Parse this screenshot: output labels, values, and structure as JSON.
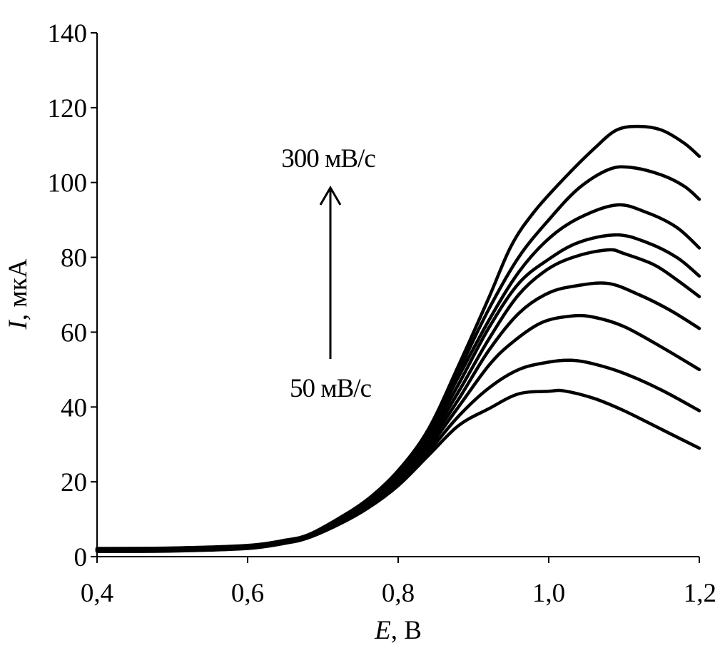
{
  "chart_data": {
    "type": "line",
    "xlabel_var": "E",
    "xlabel_unit": ", В",
    "ylabel_var": "I",
    "ylabel_unit": ", мкА",
    "xlim": [
      0.4,
      1.2
    ],
    "ylim": [
      0,
      140
    ],
    "xticks": [
      0.4,
      0.6,
      0.8,
      1.0,
      1.2
    ],
    "xtick_labels": [
      "0,4",
      "0,6",
      "0,8",
      "1,0",
      "1,2"
    ],
    "yticks": [
      0,
      20,
      40,
      60,
      80,
      100,
      120,
      140
    ],
    "ytick_labels": [
      "0",
      "20",
      "40",
      "60",
      "80",
      "100",
      "120",
      "140"
    ],
    "grid": false,
    "legend": "none",
    "line_color": "#000000",
    "annotations": {
      "top_label": "300 мВ/с",
      "bottom_label": "50 мВ/с",
      "arrow_direction": "up"
    },
    "series": [
      {
        "points": [
          [
            0.4,
            1.4
          ],
          [
            0.5,
            1.5
          ],
          [
            0.6,
            2.2
          ],
          [
            0.65,
            3.6
          ],
          [
            0.68,
            5.0
          ],
          [
            0.72,
            8.5
          ],
          [
            0.76,
            13.0
          ],
          [
            0.8,
            19.0
          ],
          [
            0.84,
            27.0
          ],
          [
            0.88,
            35.0
          ],
          [
            0.92,
            39.5
          ],
          [
            0.96,
            43.5
          ],
          [
            1.0,
            44.2
          ],
          [
            1.02,
            44.3
          ],
          [
            1.06,
            42.3
          ],
          [
            1.1,
            39.0
          ],
          [
            1.15,
            34.0
          ],
          [
            1.2,
            29.0
          ]
        ]
      },
      {
        "points": [
          [
            0.4,
            1.5
          ],
          [
            0.5,
            1.6
          ],
          [
            0.6,
            2.3
          ],
          [
            0.65,
            3.7
          ],
          [
            0.68,
            5.1
          ],
          [
            0.72,
            8.7
          ],
          [
            0.76,
            13.3
          ],
          [
            0.8,
            19.5
          ],
          [
            0.84,
            28.0
          ],
          [
            0.88,
            37.5
          ],
          [
            0.92,
            45.0
          ],
          [
            0.96,
            50.0
          ],
          [
            1.0,
            52.0
          ],
          [
            1.03,
            52.5
          ],
          [
            1.06,
            51.5
          ],
          [
            1.1,
            49.0
          ],
          [
            1.15,
            44.5
          ],
          [
            1.2,
            39.0
          ]
        ]
      },
      {
        "points": [
          [
            0.4,
            1.6
          ],
          [
            0.5,
            1.7
          ],
          [
            0.6,
            2.4
          ],
          [
            0.65,
            3.8
          ],
          [
            0.68,
            5.2
          ],
          [
            0.72,
            8.9
          ],
          [
            0.76,
            13.6
          ],
          [
            0.8,
            20.0
          ],
          [
            0.84,
            29.0
          ],
          [
            0.88,
            40.0
          ],
          [
            0.92,
            51.0
          ],
          [
            0.95,
            57.0
          ],
          [
            0.99,
            62.5
          ],
          [
            1.03,
            64.3
          ],
          [
            1.06,
            64.0
          ],
          [
            1.1,
            61.5
          ],
          [
            1.15,
            56.0
          ],
          [
            1.2,
            50.0
          ]
        ]
      },
      {
        "points": [
          [
            0.4,
            1.7
          ],
          [
            0.5,
            1.8
          ],
          [
            0.6,
            2.5
          ],
          [
            0.65,
            3.9
          ],
          [
            0.68,
            5.3
          ],
          [
            0.72,
            9.1
          ],
          [
            0.76,
            13.9
          ],
          [
            0.8,
            20.5
          ],
          [
            0.84,
            30.0
          ],
          [
            0.88,
            42.0
          ],
          [
            0.92,
            55.0
          ],
          [
            0.96,
            65.0
          ],
          [
            1.0,
            70.5
          ],
          [
            1.04,
            72.5
          ],
          [
            1.08,
            73.0
          ],
          [
            1.12,
            70.0
          ],
          [
            1.16,
            66.0
          ],
          [
            1.2,
            61.0
          ]
        ]
      },
      {
        "points": [
          [
            0.4,
            1.8
          ],
          [
            0.5,
            1.9
          ],
          [
            0.6,
            2.6
          ],
          [
            0.65,
            4.0
          ],
          [
            0.68,
            5.4
          ],
          [
            0.72,
            9.3
          ],
          [
            0.76,
            14.2
          ],
          [
            0.8,
            21.0
          ],
          [
            0.84,
            31.0
          ],
          [
            0.88,
            44.0
          ],
          [
            0.92,
            58.0
          ],
          [
            0.96,
            70.0
          ],
          [
            1.0,
            77.0
          ],
          [
            1.04,
            80.5
          ],
          [
            1.08,
            82.0
          ],
          [
            1.1,
            81.0
          ],
          [
            1.14,
            78.0
          ],
          [
            1.17,
            74.0
          ],
          [
            1.2,
            69.5
          ]
        ]
      },
      {
        "points": [
          [
            0.4,
            1.9
          ],
          [
            0.5,
            2.0
          ],
          [
            0.6,
            2.7
          ],
          [
            0.65,
            4.1
          ],
          [
            0.68,
            5.5
          ],
          [
            0.72,
            9.5
          ],
          [
            0.76,
            14.5
          ],
          [
            0.8,
            21.5
          ],
          [
            0.84,
            32.0
          ],
          [
            0.88,
            46.0
          ],
          [
            0.92,
            61.0
          ],
          [
            0.96,
            73.0
          ],
          [
            1.0,
            79.5
          ],
          [
            1.04,
            84.0
          ],
          [
            1.09,
            86.0
          ],
          [
            1.13,
            84.0
          ],
          [
            1.17,
            80.0
          ],
          [
            1.2,
            75.0
          ]
        ]
      },
      {
        "points": [
          [
            0.4,
            2.0
          ],
          [
            0.5,
            2.1
          ],
          [
            0.6,
            2.8
          ],
          [
            0.65,
            4.2
          ],
          [
            0.68,
            5.6
          ],
          [
            0.72,
            9.7
          ],
          [
            0.76,
            14.8
          ],
          [
            0.8,
            22.0
          ],
          [
            0.84,
            33.0
          ],
          [
            0.88,
            48.0
          ],
          [
            0.92,
            63.0
          ],
          [
            0.96,
            76.0
          ],
          [
            1.0,
            85.0
          ],
          [
            1.04,
            90.5
          ],
          [
            1.09,
            94.0
          ],
          [
            1.13,
            92.0
          ],
          [
            1.17,
            88.0
          ],
          [
            1.2,
            82.5
          ]
        ]
      },
      {
        "points": [
          [
            0.4,
            2.1
          ],
          [
            0.5,
            2.2
          ],
          [
            0.6,
            2.9
          ],
          [
            0.65,
            4.3
          ],
          [
            0.68,
            5.7
          ],
          [
            0.72,
            9.9
          ],
          [
            0.76,
            15.1
          ],
          [
            0.8,
            22.5
          ],
          [
            0.84,
            33.5
          ],
          [
            0.88,
            49.5
          ],
          [
            0.92,
            66.0
          ],
          [
            0.96,
            80.0
          ],
          [
            1.0,
            90.0
          ],
          [
            1.04,
            98.5
          ],
          [
            1.08,
            103.5
          ],
          [
            1.11,
            104.0
          ],
          [
            1.15,
            102.0
          ],
          [
            1.18,
            99.0
          ],
          [
            1.2,
            95.5
          ]
        ]
      },
      {
        "points": [
          [
            0.4,
            2.2
          ],
          [
            0.5,
            2.3
          ],
          [
            0.6,
            3.0
          ],
          [
            0.65,
            4.4
          ],
          [
            0.68,
            5.8
          ],
          [
            0.72,
            10.1
          ],
          [
            0.76,
            15.4
          ],
          [
            0.8,
            23.0
          ],
          [
            0.84,
            34.0
          ],
          [
            0.88,
            51.0
          ],
          [
            0.92,
            69.0
          ],
          [
            0.95,
            83.0
          ],
          [
            0.98,
            92.0
          ],
          [
            1.02,
            101.0
          ],
          [
            1.06,
            109.0
          ],
          [
            1.09,
            114.0
          ],
          [
            1.12,
            115.0
          ],
          [
            1.15,
            114.0
          ],
          [
            1.18,
            110.5
          ],
          [
            1.2,
            107.0
          ]
        ]
      }
    ]
  }
}
